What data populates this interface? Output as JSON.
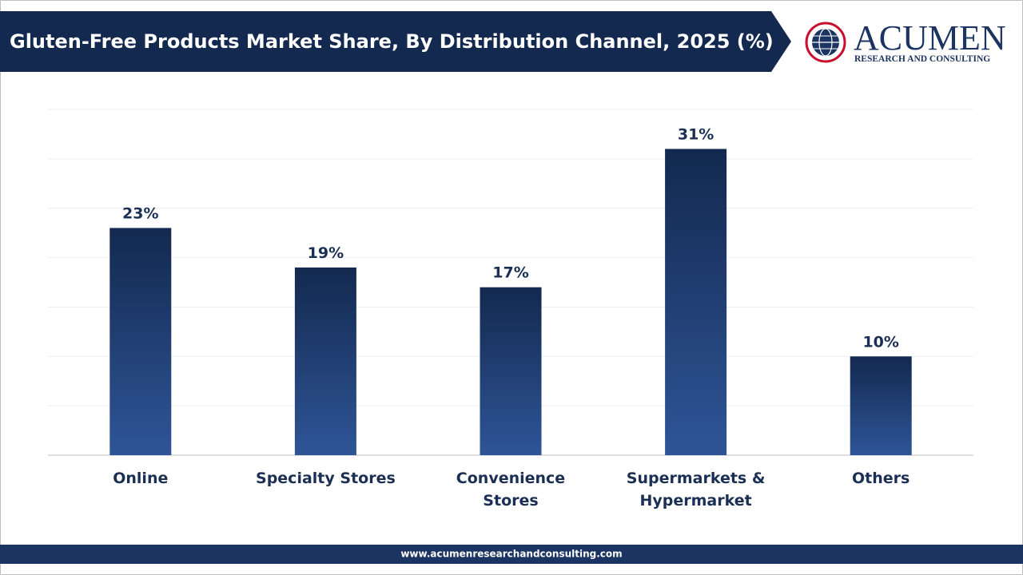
{
  "chart_data": {
    "type": "bar",
    "title": "Gluten-Free Products Market Share, By Distribution Channel, 2025 (%)",
    "categories": [
      "Online",
      "Specialty Stores",
      "Convenience Stores",
      "Supermarkets & Hypermarket",
      "Others"
    ],
    "values": [
      23,
      19,
      17,
      31,
      10
    ],
    "value_labels": [
      "23%",
      "19%",
      "17%",
      "31%",
      "10%"
    ],
    "color": "#1f3a6b",
    "ylim": [
      0,
      35
    ],
    "yticks": [
      0,
      5,
      10,
      15,
      20,
      25,
      30,
      35
    ],
    "grid": true
  },
  "logo": {
    "name": "ACUMEN",
    "tagline": "RESEARCH AND CONSULTING"
  },
  "footer": {
    "url": "www.acumenresearchandconsulting.com"
  }
}
